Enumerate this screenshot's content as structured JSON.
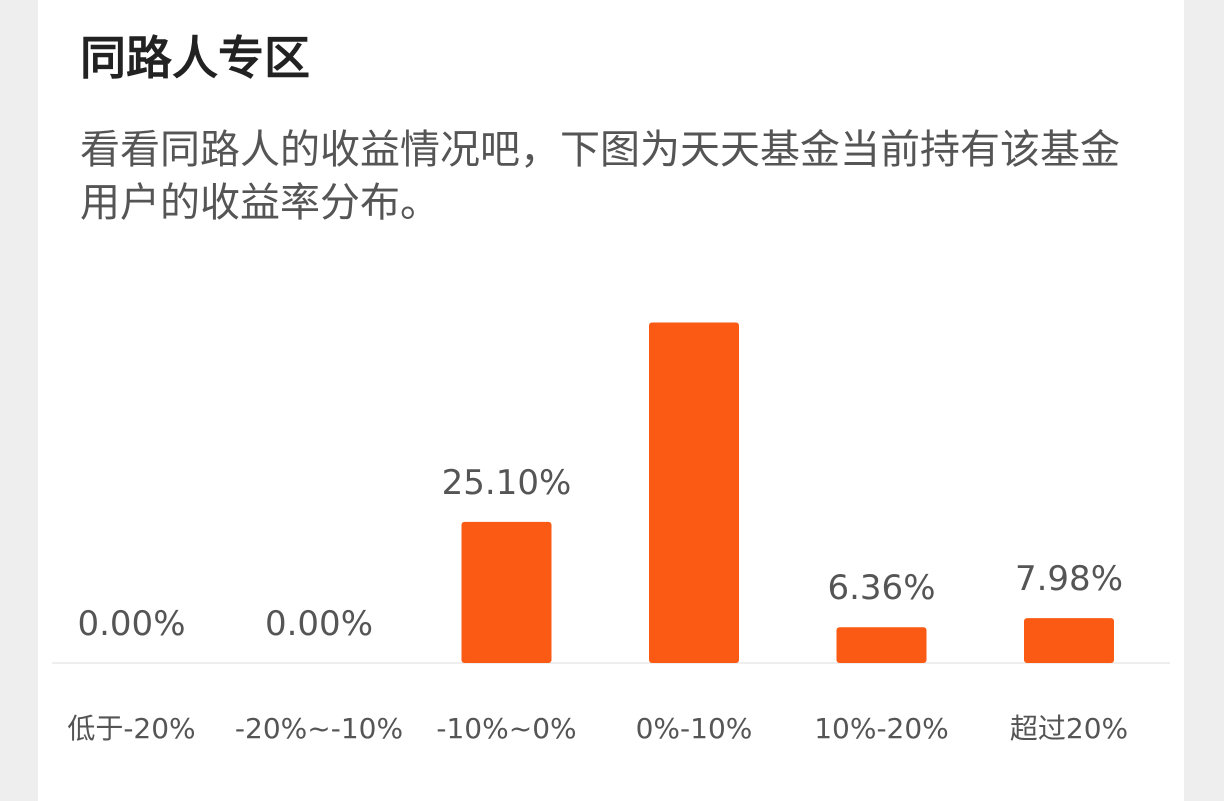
{
  "header": {
    "title": "同路人专区",
    "description": "看看同路人的收益情况吧，下图为天天基金当前持有该基金用户的收益率分布。"
  },
  "chart_data": {
    "type": "bar",
    "categories": [
      "低于-20%",
      "-20%~-10%",
      "-10%~0%",
      "0%-10%",
      "10%-20%",
      "超过20%"
    ],
    "values": [
      0.0,
      0.0,
      25.1,
      60.56,
      6.36,
      7.98
    ],
    "labels": [
      "0.00%",
      "0.00%",
      "25.10%",
      "",
      "6.36%",
      "7.98%"
    ],
    "ylim": [
      0,
      61
    ],
    "grid": false,
    "bar_color": "#fa5a14"
  }
}
